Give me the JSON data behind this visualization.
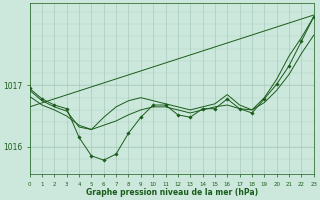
{
  "xlabel": "Graphe pression niveau de la mer (hPa)",
  "background_color": "#cce8dc",
  "grid_color": "#aaccbb",
  "line_color": "#1a5c1a",
  "hours": [
    0,
    1,
    2,
    3,
    4,
    5,
    6,
    7,
    8,
    9,
    10,
    11,
    12,
    13,
    14,
    15,
    16,
    17,
    18,
    19,
    20,
    21,
    22,
    23
  ],
  "main_line": [
    1016.95,
    1016.78,
    1016.68,
    1016.62,
    1016.15,
    1015.85,
    1015.78,
    1015.88,
    1016.22,
    1016.48,
    1016.68,
    1016.68,
    1016.52,
    1016.48,
    1016.62,
    1016.62,
    1016.78,
    1016.62,
    1016.55,
    1016.78,
    1017.02,
    1017.32,
    1017.72,
    1018.12
  ],
  "smooth_line": [
    1016.82,
    1016.68,
    1016.6,
    1016.5,
    1016.35,
    1016.28,
    1016.35,
    1016.42,
    1016.52,
    1016.6,
    1016.65,
    1016.65,
    1016.6,
    1016.55,
    1016.6,
    1016.65,
    1016.68,
    1016.62,
    1016.6,
    1016.72,
    1016.92,
    1017.18,
    1017.52,
    1017.82
  ],
  "upper_line": [
    1016.92,
    1016.75,
    1016.65,
    1016.58,
    1016.32,
    1016.28,
    1016.48,
    1016.65,
    1016.75,
    1016.8,
    1016.75,
    1016.7,
    1016.65,
    1016.6,
    1016.65,
    1016.7,
    1016.85,
    1016.68,
    1016.6,
    1016.8,
    1017.1,
    1017.48,
    1017.78,
    1018.12
  ],
  "trend_x": [
    0,
    23
  ],
  "trend_y": [
    1016.65,
    1018.15
  ],
  "ylim": [
    1015.55,
    1018.35
  ],
  "yticks": [
    1016.0,
    1017.0
  ],
  "ytick_labels": [
    "1016",
    "1017"
  ],
  "xlim": [
    0,
    23
  ]
}
